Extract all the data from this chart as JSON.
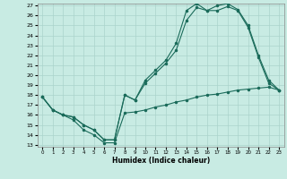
{
  "bg_color": "#c8ebe3",
  "line_color": "#1a6b5a",
  "grid_color": "#aad4cc",
  "xlabel": "Humidex (Indice chaleur)",
  "ylim": [
    13,
    27
  ],
  "xlim": [
    -0.5,
    23.5
  ],
  "yticks": [
    13,
    14,
    15,
    16,
    17,
    18,
    19,
    20,
    21,
    22,
    23,
    24,
    25,
    26,
    27
  ],
  "xticks": [
    0,
    1,
    2,
    3,
    4,
    5,
    6,
    7,
    8,
    9,
    10,
    11,
    12,
    13,
    14,
    15,
    16,
    17,
    18,
    19,
    20,
    21,
    22,
    23
  ],
  "line1_x": [
    0,
    1,
    2,
    3,
    4,
    5,
    6,
    7,
    8,
    9,
    10,
    11,
    12,
    13,
    14,
    15,
    16,
    17,
    18,
    19,
    20,
    21,
    22,
    23
  ],
  "line1_y": [
    17.8,
    16.5,
    16.0,
    15.5,
    14.5,
    14.0,
    13.2,
    13.2,
    16.2,
    16.3,
    16.5,
    16.8,
    17.0,
    17.3,
    17.5,
    17.8,
    18.0,
    18.1,
    18.3,
    18.5,
    18.6,
    18.7,
    18.8,
    18.5
  ],
  "line2_x": [
    0,
    1,
    2,
    3,
    4,
    5,
    6,
    7,
    8,
    9,
    10,
    11,
    12,
    13,
    14,
    15,
    16,
    17,
    18,
    19,
    20,
    21,
    22,
    23
  ],
  "line2_y": [
    17.8,
    16.5,
    16.0,
    15.8,
    15.0,
    14.5,
    13.5,
    13.5,
    18.0,
    17.5,
    19.5,
    20.5,
    21.5,
    23.2,
    26.5,
    27.2,
    26.5,
    27.0,
    27.2,
    26.6,
    25.0,
    22.0,
    19.5,
    18.5
  ],
  "line3_x": [
    0,
    1,
    2,
    3,
    4,
    5,
    6,
    7,
    8,
    9,
    10,
    11,
    12,
    13,
    14,
    15,
    16,
    17,
    18,
    19,
    20,
    21,
    22,
    23
  ],
  "line3_y": [
    17.8,
    16.5,
    16.0,
    15.8,
    15.0,
    14.5,
    13.5,
    13.5,
    18.0,
    17.5,
    19.2,
    20.2,
    21.2,
    22.5,
    25.5,
    26.8,
    26.5,
    26.5,
    26.9,
    26.5,
    24.8,
    21.8,
    19.2,
    18.5
  ]
}
